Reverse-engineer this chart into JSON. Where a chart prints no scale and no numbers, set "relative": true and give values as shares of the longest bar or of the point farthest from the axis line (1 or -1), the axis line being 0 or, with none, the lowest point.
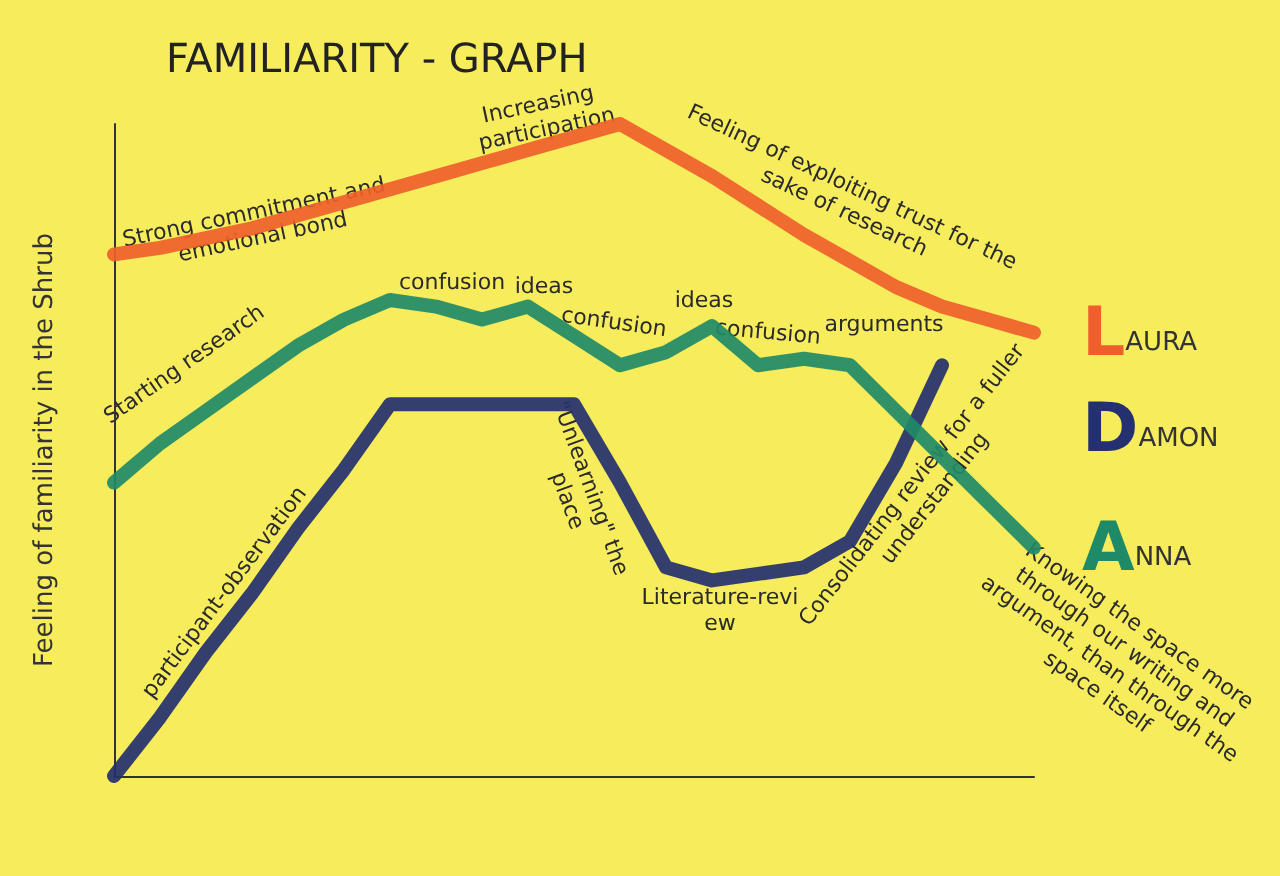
{
  "chart_data": {
    "type": "line",
    "title": "FAMILIARITY - GRAPH",
    "ylabel": "Feeling of familiarity in the Shrub",
    "relative": true,
    "grid": false,
    "legend": false,
    "marker": "none",
    "line_style": "solid",
    "categories": [
      null,
      null,
      null,
      null,
      null,
      null,
      null,
      null,
      null,
      null,
      null,
      null,
      null,
      null,
      null,
      null,
      null,
      null,
      null,
      null,
      null
    ],
    "series": [
      {
        "name": "LAURA",
        "color": "#ee5f2c",
        "values": [
          0.8,
          0.81,
          0.825,
          0.84,
          0.86,
          0.88,
          0.9,
          0.92,
          0.94,
          0.96,
          0.98,
          1,
          0.96,
          0.92,
          0.875,
          0.83,
          0.79,
          0.75,
          0.72,
          0.7,
          0.68
        ]
      },
      {
        "name": "DAMON",
        "color": "#24306f",
        "values": [
          0,
          0.09,
          0.19,
          0.28,
          0.38,
          0.47,
          0.57,
          0.57,
          0.57,
          0.57,
          0.57,
          0.45,
          0.32,
          0.3,
          0.31,
          0.32,
          0.36,
          0.48,
          0.63,
          null,
          null
        ]
      },
      {
        "name": "ANNA",
        "color": "#1f8a68",
        "values": [
          0.45,
          0.51,
          0.56,
          0.61,
          0.66,
          0.7,
          0.73,
          0.72,
          0.7,
          0.72,
          0.675,
          0.63,
          0.65,
          0.69,
          0.63,
          0.64,
          0.63,
          0.56,
          0.49,
          0.42,
          0.35
        ]
      }
    ],
    "annotations": [
      "Strong commitment and emotional bond",
      "Increasing participation",
      "Feeling of exploiting trust for the sake of research",
      "Starting research",
      "confusion",
      "ideas",
      "confusion",
      "ideas",
      "confusion",
      "arguments",
      "participant-observation",
      "\"Unlearning\" the place",
      "Literature-review",
      "Consolidating review for a fuller understanding",
      "Knowing the space more through our writing and argument, than through the space itself"
    ]
  }
}
